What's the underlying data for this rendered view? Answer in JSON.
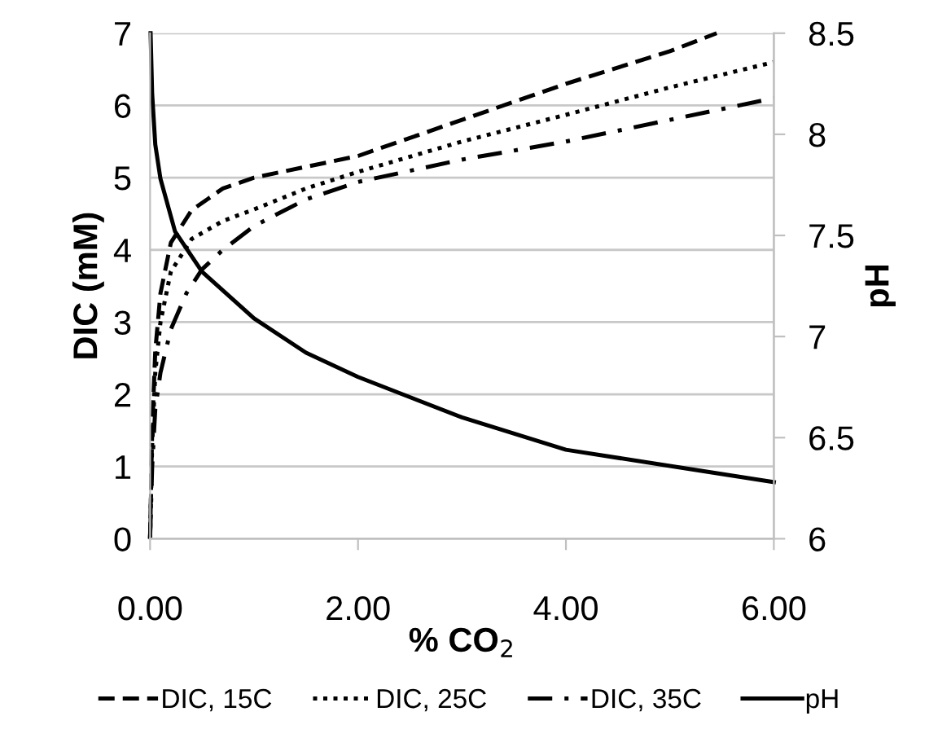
{
  "chart_data": {
    "type": "line",
    "xlabel": "% CO$_{2}$",
    "ylabel": "DIC (mM)",
    "y2label": "pH",
    "xlim": [
      0,
      6
    ],
    "xticks": [
      {
        "value": 0,
        "label": "0.00"
      },
      {
        "value": 2,
        "label": "2.00"
      },
      {
        "value": 4,
        "label": "4.00"
      },
      {
        "value": 6,
        "label": "6.00"
      }
    ],
    "ylim": [
      0,
      7
    ],
    "yticks": [
      0,
      1,
      2,
      3,
      4,
      5,
      6,
      7
    ],
    "y2lim": [
      6,
      8.5
    ],
    "y2ticks": [
      6,
      6.5,
      7,
      7.5,
      8,
      8.5
    ],
    "grid": "y",
    "legend": "bottom",
    "marker": "none",
    "series": [
      {
        "name": "DIC, 15C",
        "color": "#000000",
        "line_style": "dashed",
        "x": [
          0,
          0.02,
          0.05,
          0.1,
          0.2,
          0.4,
          0.7,
          1,
          1.5,
          2,
          3,
          4,
          5,
          5.45
        ],
        "values": [
          0,
          1.5,
          2.6,
          3.4,
          4.1,
          4.55,
          4.85,
          5.0,
          5.15,
          5.3,
          5.8,
          6.3,
          6.75,
          7.0
        ]
      },
      {
        "name": "DIC, 25C",
        "color": "#000000",
        "line_style": "dotted",
        "x": [
          0,
          0.02,
          0.05,
          0.1,
          0.2,
          0.4,
          0.7,
          1,
          1.5,
          2,
          3,
          4,
          5,
          6
        ],
        "values": [
          0,
          1.3,
          2.3,
          3.0,
          3.7,
          4.15,
          4.4,
          4.56,
          4.85,
          5.08,
          5.5,
          5.87,
          6.25,
          6.6
        ]
      },
      {
        "name": "DIC, 35C",
        "color": "#000000",
        "line_style": "dashdot",
        "x": [
          0,
          0.02,
          0.05,
          0.1,
          0.2,
          0.35,
          0.5,
          0.7,
          1,
          1.5,
          2,
          3,
          4,
          5,
          6
        ],
        "values": [
          0,
          1.0,
          1.8,
          2.3,
          2.9,
          3.4,
          3.73,
          4.0,
          4.33,
          4.7,
          4.94,
          5.25,
          5.5,
          5.8,
          6.1
        ]
      },
      {
        "name": "pH",
        "color": "#000000",
        "line_style": "solid",
        "axis": "y2",
        "x": [
          0.005,
          0.02,
          0.05,
          0.1,
          0.24,
          0.5,
          1,
          1.5,
          2,
          3,
          4,
          5,
          6
        ],
        "values": [
          8.5,
          8.2,
          7.95,
          7.78,
          7.52,
          7.32,
          7.09,
          6.92,
          6.8,
          6.6,
          6.44,
          6.36,
          6.28
        ]
      }
    ]
  }
}
